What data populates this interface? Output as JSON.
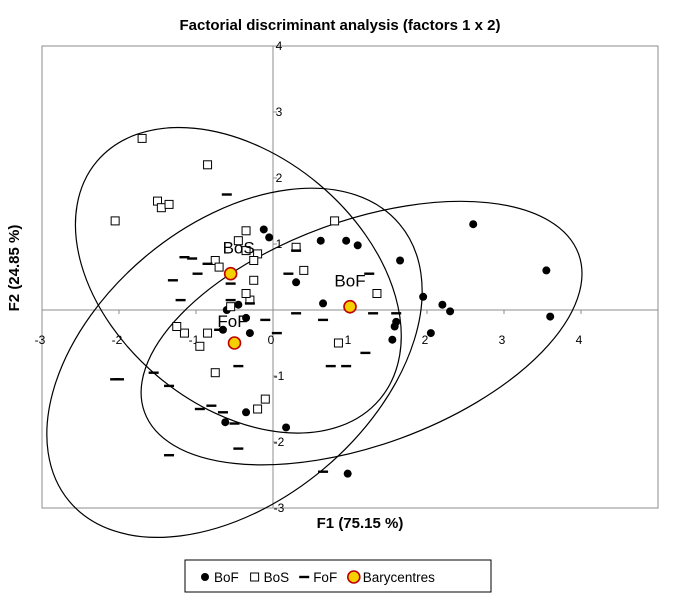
{
  "chart_data": {
    "type": "scatter",
    "title": "Factorial discriminant analysis (factors 1 x 2)",
    "xlabel": "F1 (75.15 %)",
    "ylabel": "F2 (24.85 %)",
    "xlim": [
      -3,
      5
    ],
    "ylim": [
      -3,
      4
    ],
    "x_ticks": [
      -3,
      -2,
      -1,
      0,
      1,
      2,
      3,
      4
    ],
    "y_ticks": [
      -3,
      -2,
      -1,
      1,
      2,
      3,
      4
    ],
    "grid": false,
    "legend_position": "bottom",
    "series": [
      {
        "name": "BoF",
        "marker": "filled-circle",
        "color": "#000000",
        "points": [
          [
            0.17,
            -1.78
          ],
          [
            0.97,
            -2.48
          ],
          [
            1.0,
            0.05
          ],
          [
            0.95,
            1.05
          ],
          [
            1.1,
            0.98
          ],
          [
            1.65,
            0.75
          ],
          [
            2.6,
            1.3
          ],
          [
            3.55,
            0.6
          ],
          [
            3.6,
            -0.1
          ],
          [
            1.95,
            0.2
          ],
          [
            2.2,
            0.08
          ],
          [
            2.3,
            -0.02
          ],
          [
            1.6,
            -0.18
          ],
          [
            1.58,
            -0.25
          ],
          [
            1.55,
            -0.45
          ],
          [
            2.05,
            -0.35
          ],
          [
            0.65,
            0.1
          ],
          [
            0.62,
            1.05
          ],
          [
            0.3,
            0.42
          ],
          [
            -0.12,
            1.22
          ],
          [
            -0.05,
            1.1
          ],
          [
            -0.6,
            0.0
          ],
          [
            -0.45,
            0.08
          ],
          [
            -0.35,
            -0.12
          ],
          [
            -0.3,
            -0.35
          ],
          [
            -0.65,
            -0.3
          ],
          [
            -0.35,
            -1.55
          ],
          [
            -0.62,
            -1.7
          ]
        ]
      },
      {
        "name": "BoS",
        "marker": "open-square",
        "color": "#000000",
        "points": [
          [
            -1.7,
            2.6
          ],
          [
            -2.05,
            1.35
          ],
          [
            -1.5,
            1.65
          ],
          [
            -1.45,
            1.55
          ],
          [
            -1.35,
            1.6
          ],
          [
            -0.85,
            2.2
          ],
          [
            -1.15,
            -0.35
          ],
          [
            -1.25,
            -0.25
          ],
          [
            -0.95,
            -0.55
          ],
          [
            -0.85,
            -0.35
          ],
          [
            -0.75,
            -0.95
          ],
          [
            -0.75,
            0.75
          ],
          [
            -0.7,
            0.65
          ],
          [
            -0.55,
            0.05
          ],
          [
            -0.45,
            1.05
          ],
          [
            -0.35,
            1.2
          ],
          [
            -0.35,
            0.9
          ],
          [
            -0.2,
            0.85
          ],
          [
            -0.25,
            0.45
          ],
          [
            -0.3,
            0.15
          ],
          [
            -0.35,
            0.25
          ],
          [
            -0.2,
            -1.5
          ],
          [
            -0.1,
            -1.35
          ],
          [
            0.3,
            0.95
          ],
          [
            0.4,
            0.6
          ],
          [
            0.8,
            1.35
          ],
          [
            0.85,
            -0.5
          ],
          [
            1.35,
            0.25
          ],
          [
            -0.25,
            0.75
          ]
        ]
      },
      {
        "name": "FoF",
        "marker": "dash",
        "color": "#000000",
        "points": [
          [
            -1.3,
            0.45
          ],
          [
            -1.15,
            0.8
          ],
          [
            -1.05,
            0.78
          ],
          [
            -0.98,
            0.55
          ],
          [
            -0.85,
            0.7
          ],
          [
            -0.6,
            1.75
          ],
          [
            -0.55,
            0.4
          ],
          [
            -0.55,
            0.15
          ],
          [
            -0.7,
            -0.3
          ],
          [
            -0.45,
            -0.85
          ],
          [
            -0.95,
            -1.5
          ],
          [
            -0.8,
            -1.45
          ],
          [
            -0.65,
            -1.55
          ],
          [
            -0.5,
            -1.72
          ],
          [
            -0.45,
            -2.1
          ],
          [
            -1.35,
            -1.15
          ],
          [
            -1.55,
            -0.95
          ],
          [
            -2.0,
            -1.05
          ],
          [
            -2.05,
            -1.05
          ],
          [
            -1.35,
            -2.2
          ],
          [
            -1.2,
            0.15
          ],
          [
            -0.1,
            -0.15
          ],
          [
            0.3,
            0.9
          ],
          [
            0.2,
            0.55
          ],
          [
            0.3,
            -0.05
          ],
          [
            0.65,
            -0.15
          ],
          [
            0.75,
            -0.85
          ],
          [
            0.95,
            -0.85
          ],
          [
            1.25,
            0.55
          ],
          [
            1.3,
            -0.05
          ],
          [
            1.2,
            -0.65
          ],
          [
            1.6,
            -0.05
          ],
          [
            0.65,
            -2.45
          ],
          [
            0.05,
            -0.35
          ],
          [
            -0.3,
            0.1
          ]
        ]
      },
      {
        "name": "Barycentres",
        "marker": "filled-circle-yellow",
        "color": "#f5d000",
        "points": [
          [
            1.0,
            0.05
          ],
          [
            -0.55,
            0.55
          ],
          [
            -0.5,
            -0.5
          ]
        ]
      }
    ],
    "barycentre_labels": [
      {
        "text": "BoF",
        "x": 1.0,
        "y": 0.05
      },
      {
        "text": "BoS",
        "x": -0.55,
        "y": 0.55
      },
      {
        "text": "FoF",
        "x": -0.5,
        "y": -0.5
      }
    ],
    "confidence_ellipses": [
      {
        "group": "BoF",
        "center": [
          1.15,
          -0.35
        ],
        "radius_major": 3.0,
        "radius_minor": 1.7,
        "angle_deg": 20
      },
      {
        "group": "BoS",
        "center": [
          -0.45,
          0.45
        ],
        "radius_major": 2.4,
        "radius_minor": 1.9,
        "angle_deg": -40
      },
      {
        "group": "FoF",
        "center": [
          -0.5,
          -0.8
        ],
        "radius_major": 2.8,
        "radius_minor": 2.1,
        "angle_deg": 40
      }
    ],
    "legend": [
      "BoF",
      "BoS",
      "FoF",
      "Barycentres"
    ]
  }
}
